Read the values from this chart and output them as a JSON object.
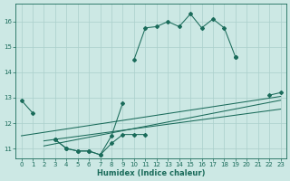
{
  "title": "",
  "xlabel": "Humidex (Indice chaleur)",
  "bg_color": "#cce8e4",
  "grid_color": "#aacfcb",
  "line_color": "#1a6b5a",
  "xlim": [
    -0.5,
    23.5
  ],
  "ylim": [
    10.6,
    16.7
  ],
  "xticks": [
    0,
    1,
    2,
    3,
    4,
    5,
    6,
    7,
    8,
    9,
    10,
    11,
    12,
    13,
    14,
    15,
    16,
    17,
    18,
    19,
    20,
    21,
    22,
    23
  ],
  "yticks": [
    11,
    12,
    13,
    14,
    15,
    16
  ],
  "x": [
    0,
    1,
    2,
    3,
    4,
    5,
    6,
    7,
    8,
    9,
    10,
    11,
    12,
    13,
    14,
    15,
    16,
    17,
    18,
    19,
    20,
    21,
    22,
    23
  ],
  "line_main": [
    null,
    null,
    null,
    null,
    null,
    null,
    null,
    null,
    null,
    null,
    14.5,
    15.75,
    15.8,
    16.0,
    15.8,
    16.3,
    15.75,
    16.1,
    15.75,
    14.6,
    null,
    null,
    null,
    null
  ],
  "line_lower": [
    12.9,
    12.4,
    null,
    11.35,
    11.0,
    10.9,
    10.9,
    10.75,
    11.5,
    12.8,
    null,
    null,
    null,
    null,
    null,
    null,
    null,
    null,
    null,
    null,
    null,
    null,
    null,
    null
  ],
  "line_lower2": [
    null,
    null,
    null,
    11.35,
    11.0,
    10.9,
    10.9,
    10.75,
    11.2,
    11.55,
    11.55,
    11.55,
    null,
    null,
    null,
    null,
    null,
    null,
    null,
    null,
    null,
    null,
    null,
    null
  ],
  "line_end": [
    null,
    null,
    null,
    null,
    null,
    null,
    null,
    null,
    null,
    null,
    null,
    null,
    null,
    null,
    null,
    null,
    null,
    null,
    null,
    14.6,
    null,
    null,
    13.1,
    13.2
  ],
  "trend1_x": [
    0,
    23
  ],
  "trend1_y": [
    11.5,
    13.05
  ],
  "trend2_x": [
    2,
    23
  ],
  "trend2_y": [
    11.1,
    12.9
  ],
  "trend3_x": [
    2,
    23
  ],
  "trend3_y": [
    11.3,
    12.55
  ]
}
